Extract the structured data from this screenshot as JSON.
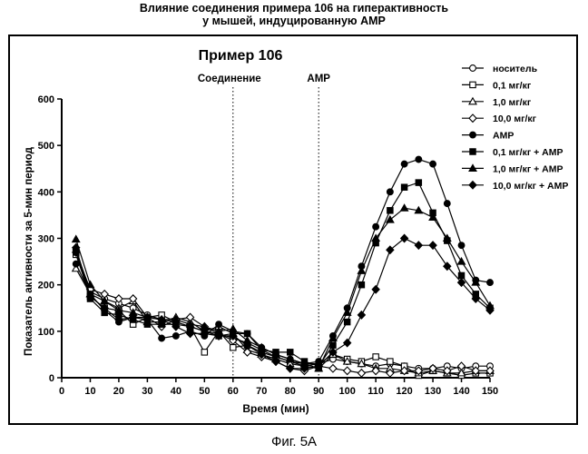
{
  "header": {
    "line1": "Влияние соединения примера 106 на гиперактивность",
    "line2": "у мышей, индуцированную AMP"
  },
  "caption": "Фиг. 5А",
  "chart_data": {
    "type": "line",
    "title": "Пример 106",
    "xlabel": "Время (мин)",
    "ylabel": "Показатель активности за 5-мин период",
    "xlim": [
      0,
      150
    ],
    "ylim": [
      0,
      600
    ],
    "xticks": [
      0,
      10,
      20,
      30,
      40,
      50,
      60,
      70,
      80,
      90,
      100,
      110,
      120,
      130,
      140,
      150
    ],
    "yticks": [
      0,
      100,
      200,
      300,
      400,
      500,
      600
    ],
    "markers": [
      {
        "x": 60,
        "label": "Соединение"
      },
      {
        "x": 90,
        "label": "AMP"
      }
    ],
    "legend_position": "top-right",
    "x": [
      5,
      10,
      15,
      20,
      25,
      30,
      35,
      40,
      45,
      50,
      55,
      60,
      65,
      70,
      75,
      80,
      85,
      90,
      95,
      100,
      105,
      110,
      115,
      120,
      125,
      130,
      135,
      140,
      145,
      150
    ],
    "series": [
      {
        "name": "носитель",
        "marker": "circle",
        "filled": false,
        "values": [
          275,
          185,
          170,
          160,
          150,
          135,
          125,
          120,
          110,
          100,
          95,
          85,
          75,
          60,
          45,
          35,
          30,
          30,
          40,
          35,
          30,
          25,
          30,
          25,
          20,
          20,
          25,
          20,
          25,
          25
        ]
      },
      {
        "name": "0,1 мг/кг",
        "marker": "square",
        "filled": false,
        "values": [
          265,
          175,
          150,
          145,
          115,
          130,
          135,
          120,
          110,
          55,
          100,
          65,
          70,
          55,
          45,
          35,
          25,
          20,
          50,
          40,
          35,
          45,
          35,
          25,
          5,
          15,
          10,
          5,
          10,
          10
        ]
      },
      {
        "name": "1,0 мг/кг",
        "marker": "triangle",
        "filled": false,
        "values": [
          235,
          180,
          165,
          150,
          165,
          120,
          120,
          130,
          120,
          100,
          110,
          95,
          60,
          50,
          40,
          30,
          25,
          30,
          50,
          35,
          30,
          20,
          20,
          15,
          10,
          15,
          10,
          10,
          15,
          15
        ]
      },
      {
        "name": "10,0 мг/кг",
        "marker": "diamond",
        "filled": false,
        "values": [
          270,
          190,
          180,
          170,
          170,
          130,
          110,
          125,
          130,
          110,
          95,
          80,
          55,
          45,
          35,
          20,
          15,
          25,
          20,
          15,
          10,
          15,
          10,
          15,
          15,
          20,
          15,
          25,
          15,
          15
        ]
      },
      {
        "name": "AMP",
        "marker": "circle",
        "filled": true,
        "values": [
          245,
          180,
          145,
          120,
          130,
          125,
          85,
          90,
          100,
          90,
          115,
          100,
          95,
          65,
          50,
          40,
          30,
          35,
          90,
          150,
          240,
          325,
          400,
          460,
          470,
          460,
          375,
          285,
          210,
          205
        ]
      },
      {
        "name": "0,1 мг/кг + AMP",
        "marker": "square",
        "filled": true,
        "values": [
          270,
          170,
          140,
          135,
          125,
          115,
          115,
          115,
          110,
          100,
          90,
          95,
          95,
          60,
          55,
          55,
          35,
          25,
          70,
          120,
          200,
          290,
          360,
          410,
          420,
          355,
          295,
          220,
          180,
          150
        ]
      },
      {
        "name": "1,0 мг/кг + AMP",
        "marker": "triangle",
        "filled": true,
        "values": [
          298,
          200,
          165,
          145,
          140,
          130,
          125,
          125,
          115,
          110,
          100,
          105,
          80,
          65,
          50,
          40,
          30,
          20,
          85,
          140,
          230,
          300,
          340,
          365,
          360,
          345,
          300,
          250,
          205,
          155
        ]
      },
      {
        "name": "10,0 мг/кг + AMP",
        "marker": "diamond",
        "filled": true,
        "values": [
          280,
          175,
          150,
          125,
          130,
          130,
          125,
          110,
          95,
          95,
          90,
          90,
          70,
          50,
          35,
          20,
          20,
          25,
          55,
          75,
          135,
          190,
          275,
          300,
          285,
          285,
          240,
          205,
          170,
          145
        ]
      }
    ]
  }
}
